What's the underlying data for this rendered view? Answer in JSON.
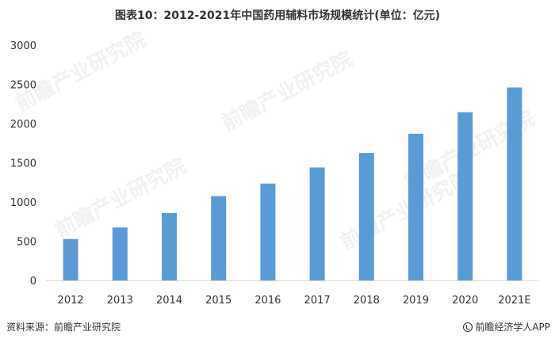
{
  "title": "图表10：2012-2021年中国药用辅料市场规模统计(单位：亿元)",
  "source": "资料来源：前瞻产业研究院",
  "brand": "前瞻经济学人APP",
  "watermark": "前瞻产业研究院",
  "colors": {
    "bar": "#5B9BD5",
    "axis": "#D9D9D9",
    "text": "#333333"
  },
  "chart_data": {
    "type": "bar",
    "title": "图表10：2012-2021年中国药用辅料市场规模统计(单位：亿元)",
    "categories": [
      "2012",
      "2013",
      "2014",
      "2015",
      "2016",
      "2017",
      "2018",
      "2019",
      "2020",
      "2021E"
    ],
    "values": [
      528,
      675,
      860,
      1075,
      1235,
      1440,
      1625,
      1870,
      2145,
      2460
    ],
    "yticks": [
      "0",
      "500",
      "1000",
      "1500",
      "2000",
      "2500",
      "3000"
    ],
    "ylim": [
      0,
      3000
    ],
    "grid": false,
    "legend": "none"
  }
}
